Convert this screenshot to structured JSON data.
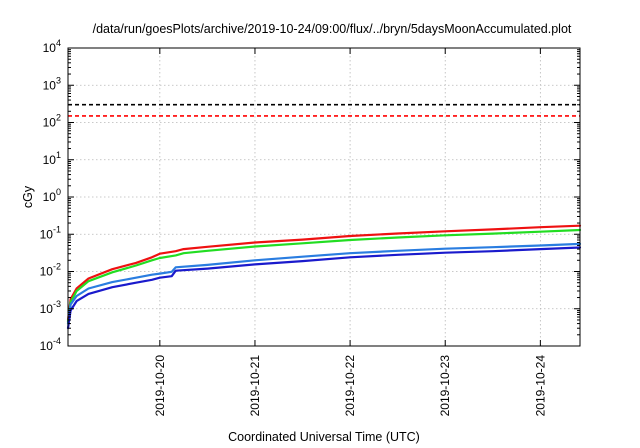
{
  "chart_data": {
    "type": "line",
    "title": "/data/run/goesPlots/archive/2019-10-24/09:00/flux/../bryn/5daysMoonAccumulated.plot",
    "xlabel": "Coordinated Universal Time (UTC)",
    "ylabel": "cGy",
    "y_scale": "log",
    "ylim": [
      "1e-4",
      "1e4"
    ],
    "xlim": [
      "2019-10-19T00:50",
      "2019-10-24T10:00"
    ],
    "grid": true,
    "legend": "none",
    "x_ticks": [
      "2019-10-20",
      "2019-10-21",
      "2019-10-22",
      "2019-10-23",
      "2019-10-24"
    ],
    "y_ticks": [
      {
        "value": 0.0001,
        "base": "10",
        "exp": "-4"
      },
      {
        "value": 0.001,
        "base": "10",
        "exp": "-3"
      },
      {
        "value": 0.01,
        "base": "10",
        "exp": "-2"
      },
      {
        "value": 0.1,
        "base": "10",
        "exp": "-1"
      },
      {
        "value": 1,
        "base": "10",
        "exp": "0"
      },
      {
        "value": 10,
        "base": "10",
        "exp": "1"
      },
      {
        "value": 100,
        "base": "10",
        "exp": "2"
      },
      {
        "value": 1000,
        "base": "10",
        "exp": "3"
      },
      {
        "value": 10000,
        "base": "10",
        "exp": "4"
      }
    ],
    "thresholds": [
      {
        "value": 300,
        "color": "#000000",
        "dash": true
      },
      {
        "value": 150,
        "color": "#ff0000",
        "dash": true
      }
    ],
    "series": [
      {
        "color": "#ee1111",
        "x": [
          "2019-10-19T00:50",
          "2019-10-19T01:30",
          "2019-10-19T03:00",
          "2019-10-19T06:00",
          "2019-10-19T12:00",
          "2019-10-19T18:00",
          "2019-10-19T22:00",
          "2019-10-20T00:00",
          "2019-10-20T04:00",
          "2019-10-20T06:00",
          "2019-10-20T12:00",
          "2019-10-21T00:00",
          "2019-10-21T12:00",
          "2019-10-22T00:00",
          "2019-10-22T12:00",
          "2019-10-23T00:00",
          "2019-10-23T12:00",
          "2019-10-24T00:00",
          "2019-10-24T10:00"
        ],
        "values": [
          0.0005,
          0.0018,
          0.0035,
          0.0065,
          0.0115,
          0.017,
          0.024,
          0.03,
          0.035,
          0.04,
          0.046,
          0.06,
          0.072,
          0.09,
          0.105,
          0.12,
          0.135,
          0.155,
          0.17
        ]
      },
      {
        "color": "#22dd22",
        "x": [
          "2019-10-19T00:50",
          "2019-10-19T01:30",
          "2019-10-19T03:00",
          "2019-10-19T06:00",
          "2019-10-19T12:00",
          "2019-10-19T18:00",
          "2019-10-19T22:00",
          "2019-10-20T00:00",
          "2019-10-20T04:00",
          "2019-10-20T06:00",
          "2019-10-20T12:00",
          "2019-10-21T00:00",
          "2019-10-21T12:00",
          "2019-10-22T00:00",
          "2019-10-22T12:00",
          "2019-10-23T00:00",
          "2019-10-23T12:00",
          "2019-10-24T00:00",
          "2019-10-24T10:00"
        ],
        "values": [
          0.00045,
          0.0015,
          0.003,
          0.0055,
          0.0095,
          0.0145,
          0.02,
          0.023,
          0.027,
          0.031,
          0.036,
          0.047,
          0.057,
          0.07,
          0.082,
          0.094,
          0.104,
          0.117,
          0.13
        ]
      },
      {
        "color": "#2a7de0",
        "x": [
          "2019-10-19T00:50",
          "2019-10-19T01:30",
          "2019-10-19T03:00",
          "2019-10-19T06:00",
          "2019-10-19T12:00",
          "2019-10-19T18:00",
          "2019-10-19T22:00",
          "2019-10-20T00:00",
          "2019-10-20T03:00",
          "2019-10-20T04:00",
          "2019-10-20T12:00",
          "2019-10-21T00:00",
          "2019-10-21T12:00",
          "2019-10-22T00:00",
          "2019-10-22T12:00",
          "2019-10-23T00:00",
          "2019-10-23T12:00",
          "2019-10-24T00:00",
          "2019-10-24T10:00"
        ],
        "values": [
          0.0004,
          0.0013,
          0.0022,
          0.0035,
          0.0052,
          0.0068,
          0.0082,
          0.0088,
          0.0098,
          0.013,
          0.015,
          0.02,
          0.025,
          0.031,
          0.036,
          0.041,
          0.045,
          0.05,
          0.055
        ]
      },
      {
        "color": "#1a1acc",
        "x": [
          "2019-10-19T00:50",
          "2019-10-19T01:30",
          "2019-10-19T03:00",
          "2019-10-19T06:00",
          "2019-10-19T12:00",
          "2019-10-19T18:00",
          "2019-10-19T22:00",
          "2019-10-20T00:00",
          "2019-10-20T03:00",
          "2019-10-20T04:00",
          "2019-10-20T12:00",
          "2019-10-21T00:00",
          "2019-10-21T12:00",
          "2019-10-22T00:00",
          "2019-10-22T12:00",
          "2019-10-23T00:00",
          "2019-10-23T12:00",
          "2019-10-24T00:00",
          "2019-10-24T10:00"
        ],
        "values": [
          0.0003,
          0.0009,
          0.0016,
          0.0025,
          0.0038,
          0.005,
          0.006,
          0.0068,
          0.0075,
          0.0105,
          0.012,
          0.0155,
          0.019,
          0.024,
          0.028,
          0.032,
          0.035,
          0.04,
          0.044
        ]
      }
    ]
  }
}
